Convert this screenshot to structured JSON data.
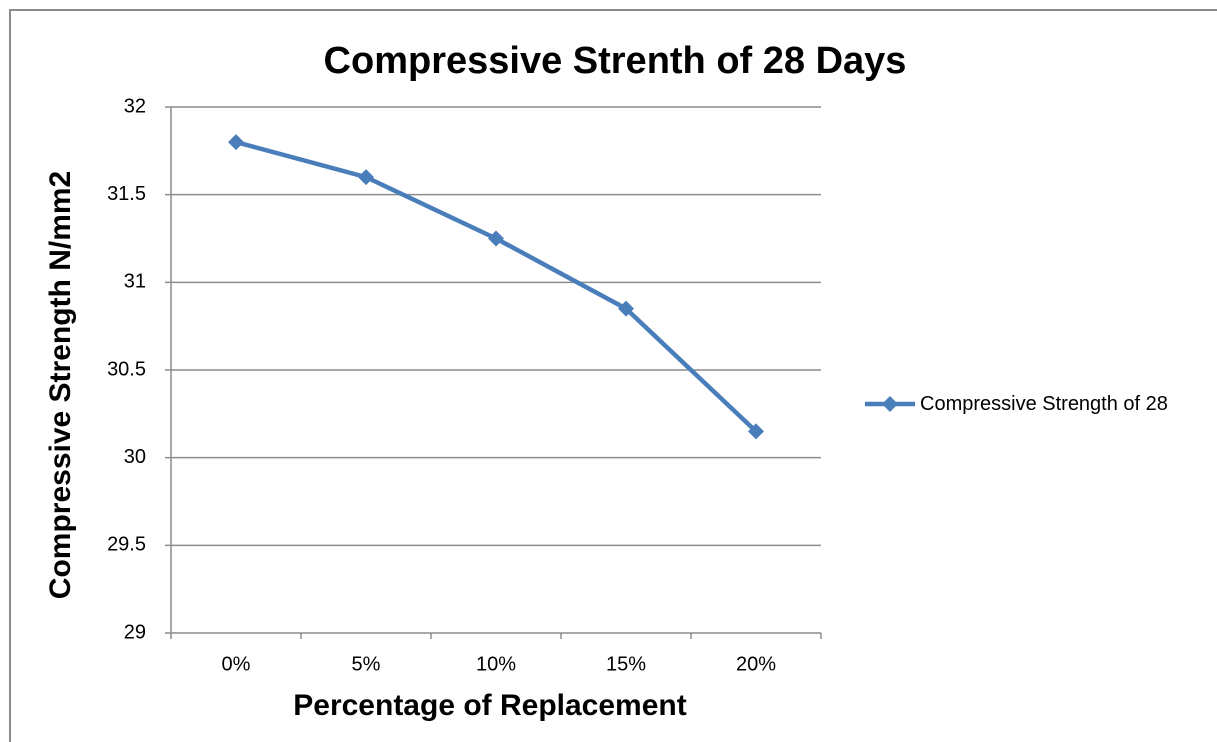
{
  "chart_data": {
    "type": "line",
    "title": "Compressive Strenth of 28 Days",
    "x_label": "Percentage of Replacement",
    "y_label": "Compressive Strength N/mm2",
    "categories": [
      "0%",
      "5%",
      "10%",
      "15%",
      "20%"
    ],
    "series": [
      {
        "name": "Compressive Strength of 28",
        "color": "#4a7ebb",
        "values": [
          31.8,
          31.6,
          31.25,
          30.85,
          30.15
        ]
      }
    ],
    "ylim": [
      29,
      32
    ],
    "yticks": [
      29,
      29.5,
      30,
      30.5,
      31,
      31.5,
      32
    ],
    "grid": true,
    "legend": "right"
  }
}
